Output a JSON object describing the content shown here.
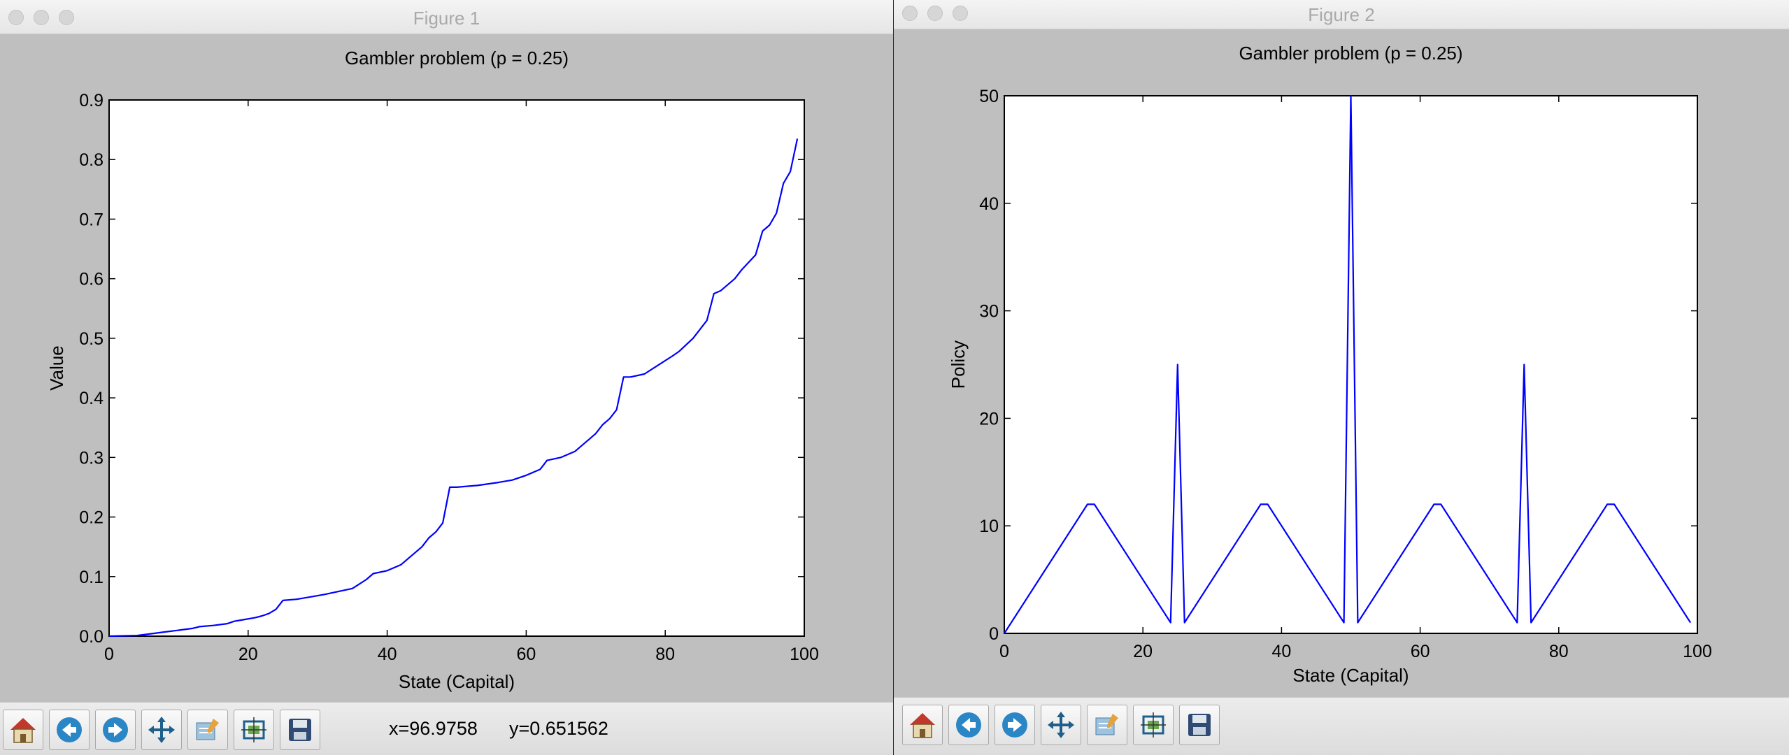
{
  "windows": [
    {
      "title": "Figure 1",
      "coords_x": "x=96.9758",
      "coords_y": "y=0.651562"
    },
    {
      "title": "Figure 2",
      "coords_x": "",
      "coords_y": ""
    }
  ],
  "toolbar_icons": [
    "home-icon",
    "back-arrow-icon",
    "forward-arrow-icon",
    "pan-icon",
    "configure-subplots-icon",
    "zoom-rect-icon",
    "save-icon"
  ],
  "colors": {
    "line": "#0000ff",
    "background": "#bfbfbf",
    "axes_bg": "#ffffff"
  },
  "chart_data": [
    {
      "type": "line",
      "title": "Gambler problem (p = 0.25)",
      "xlabel": "State (Capital)",
      "ylabel": "Value",
      "xlim": [
        0,
        100
      ],
      "ylim": [
        0,
        0.9
      ],
      "xticks": [
        0,
        20,
        40,
        60,
        80,
        100
      ],
      "yticks": [
        0.0,
        0.1,
        0.2,
        0.3,
        0.4,
        0.5,
        0.6,
        0.7,
        0.8,
        0.9
      ],
      "xtick_labels": [
        "0",
        "20",
        "40",
        "60",
        "80",
        "100"
      ],
      "ytick_labels": [
        "0.0",
        "0.1",
        "0.2",
        "0.3",
        "0.4",
        "0.5",
        "0.6",
        "0.7",
        "0.8",
        "0.9"
      ],
      "grid": false,
      "series": [
        {
          "x": [
            0,
            4,
            6,
            8,
            10,
            12,
            13,
            15,
            17,
            18,
            19,
            21,
            22,
            23,
            24,
            25,
            27,
            29,
            31,
            33,
            35,
            37,
            38,
            40,
            42,
            43,
            44,
            45,
            46,
            47,
            48,
            49,
            50,
            53,
            56,
            58,
            60,
            62,
            63,
            65,
            67,
            68,
            69,
            70,
            71,
            72,
            73,
            74,
            75,
            77,
            79,
            81,
            82,
            84,
            86,
            87,
            88,
            90,
            91,
            93,
            94,
            95,
            96,
            97,
            98,
            99
          ],
          "y": [
            0.0,
            0.001,
            0.004,
            0.007,
            0.01,
            0.013,
            0.016,
            0.018,
            0.021,
            0.025,
            0.027,
            0.031,
            0.034,
            0.038,
            0.045,
            0.06,
            0.062,
            0.066,
            0.07,
            0.075,
            0.08,
            0.095,
            0.105,
            0.11,
            0.12,
            0.13,
            0.14,
            0.15,
            0.165,
            0.175,
            0.19,
            0.25,
            0.25,
            0.253,
            0.258,
            0.262,
            0.27,
            0.28,
            0.295,
            0.3,
            0.31,
            0.32,
            0.33,
            0.34,
            0.355,
            0.365,
            0.38,
            0.435,
            0.435,
            0.44,
            0.455,
            0.47,
            0.478,
            0.5,
            0.53,
            0.575,
            0.58,
            0.6,
            0.615,
            0.64,
            0.68,
            0.69,
            0.71,
            0.76,
            0.78,
            0.835
          ]
        }
      ]
    },
    {
      "type": "line",
      "title": "Gambler problem (p = 0.25)",
      "xlabel": "State (Capital)",
      "ylabel": "Policy",
      "xlim": [
        0,
        100
      ],
      "ylim": [
        0,
        50
      ],
      "xticks": [
        0,
        20,
        40,
        60,
        80,
        100
      ],
      "yticks": [
        0,
        10,
        20,
        30,
        40,
        50
      ],
      "xtick_labels": [
        "0",
        "20",
        "40",
        "60",
        "80",
        "100"
      ],
      "ytick_labels": [
        "0",
        "10",
        "20",
        "30",
        "40",
        "50"
      ],
      "grid": false,
      "series": [
        {
          "x": [
            0,
            12,
            13,
            24,
            25,
            26,
            37,
            38,
            49,
            50,
            51,
            62,
            63,
            74,
            75,
            76,
            87,
            88,
            99
          ],
          "y": [
            0,
            12,
            12,
            1,
            25,
            1,
            12,
            12,
            1,
            50,
            1,
            12,
            12,
            1,
            25,
            1,
            12,
            12,
            1
          ]
        }
      ]
    }
  ]
}
